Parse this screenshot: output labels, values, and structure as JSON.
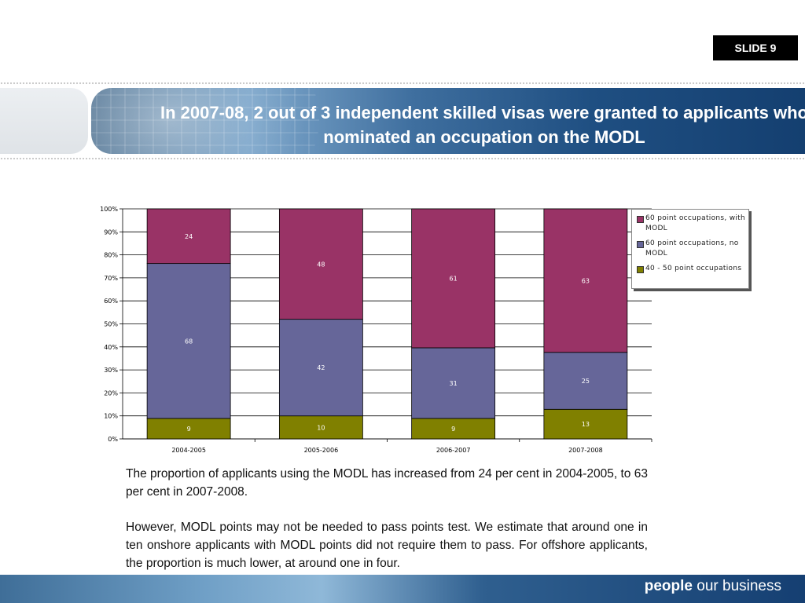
{
  "slide_label": "SLIDE 9",
  "title": "In 2007-08, 2 out of 3 independent skilled visas were granted to applicants who nominated an occupation on the MODL",
  "colors": {
    "modl": "#993366",
    "no_modl": "#666699",
    "low_points": "#808000",
    "banner_dark": "#143f70",
    "footer_text": "#ffffff"
  },
  "chart_data": {
    "type": "bar",
    "stacked": true,
    "categories": [
      "2004-2005",
      "2005-2006",
      "2006-2007",
      "2007-2008"
    ],
    "series": [
      {
        "name": "40 - 50 point occupations",
        "values": [
          9,
          10,
          9,
          13
        ],
        "color": "#808000"
      },
      {
        "name": "60 point occupations, no MODL",
        "values": [
          68,
          42,
          31,
          25
        ],
        "color": "#666699"
      },
      {
        "name": "60 point occupations, with MODL",
        "values": [
          24,
          48,
          61,
          63
        ],
        "color": "#993366"
      }
    ],
    "yticks": [
      "0%",
      "10%",
      "20%",
      "30%",
      "40%",
      "50%",
      "60%",
      "70%",
      "80%",
      "90%",
      "100%"
    ],
    "ylim": [
      0,
      100
    ],
    "grid": true,
    "legend_position": "right"
  },
  "legend": [
    {
      "label": "60 point occupations, with MODL",
      "color": "#993366"
    },
    {
      "label": "60 point occupations, no MODL",
      "color": "#666699"
    },
    {
      "label": "40 - 50 point occupations",
      "color": "#808000"
    }
  ],
  "body": {
    "paragraph1": "The proportion of applicants using the MODL has increased from 24 per cent in 2004-2005, to 63 per cent in 2007-2008.",
    "paragraph2": "However, MODL points may not be needed to pass points test. We estimate that around one in ten onshore applicants with MODL points did not require them to pass. For offshore applicants, the proportion is much lower, at around one in four."
  },
  "footer": {
    "brand_bold": "people",
    "brand_rest": " our business"
  }
}
